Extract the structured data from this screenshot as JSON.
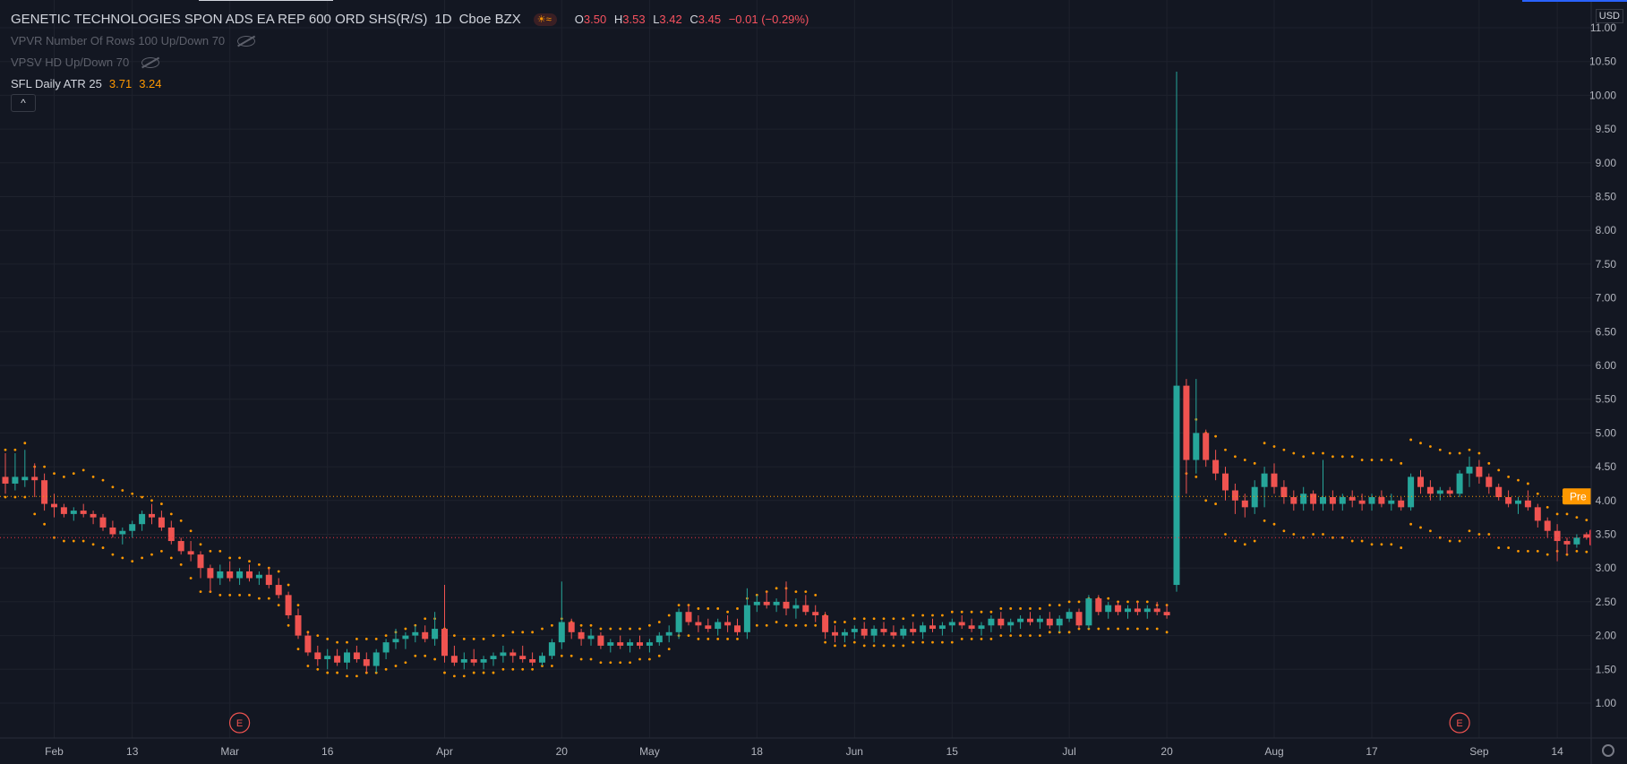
{
  "legend": {
    "symbol": "GENETIC TECHNOLOGIES SPON ADS EA REP 600 ORD SHS(R/S)",
    "interval": "1D",
    "exchange": "Cboe BZX",
    "o_label": "O",
    "o_value": "3.50",
    "h_label": "H",
    "h_value": "3.53",
    "l_label": "L",
    "l_value": "3.42",
    "c_label": "C",
    "c_value": "3.45",
    "change": "−0.01 (−0.29%)",
    "indicators": [
      {
        "name": "VPVR Number Of Rows 100 Up/Down 70",
        "icon": "eye-hidden-icon"
      },
      {
        "name": "VPSV HD Up/Down 70",
        "icon": "eye-hidden-icon"
      }
    ],
    "atr_name": "SFL Daily ATR 25",
    "atr_upper": "3.71",
    "atr_lower": "3.24",
    "collapse_glyph": "^"
  },
  "axis": {
    "currency": "USD"
  },
  "colors": {
    "background": "#131722",
    "up": "#26a69a",
    "down": "#ef5350",
    "atr": "#ff9800",
    "grid": "#1e222d",
    "text": "#b2b5be",
    "pre_badge": "#ff9800",
    "last_badge": "#f23645"
  },
  "chart_data": {
    "type": "candlestick",
    "title": "GENETIC TECHNOLOGIES SPON ADS EA REP 600 ORD SHS(R/S)",
    "ylim": [
      0.7,
      11.2
    ],
    "y_ticks": [
      "1.00",
      "1.50",
      "2.00",
      "2.50",
      "3.00",
      "3.50",
      "4.00",
      "4.50",
      "5.00",
      "5.50",
      "6.00",
      "6.50",
      "7.00",
      "7.50",
      "8.00",
      "8.50",
      "9.00",
      "9.50",
      "10.00",
      "10.50",
      "11.00"
    ],
    "x_ticks": [
      {
        "label": "Feb",
        "index": 5
      },
      {
        "label": "13",
        "index": 13
      },
      {
        "label": "Mar",
        "index": 23
      },
      {
        "label": "16",
        "index": 33
      },
      {
        "label": "Apr",
        "index": 45
      },
      {
        "label": "20",
        "index": 57
      },
      {
        "label": "May",
        "index": 66
      },
      {
        "label": "18",
        "index": 77
      },
      {
        "label": "Jun",
        "index": 87
      },
      {
        "label": "15",
        "index": 97
      },
      {
        "label": "Jul",
        "index": 109
      },
      {
        "label": "20",
        "index": 119
      },
      {
        "label": "Aug",
        "index": 130
      },
      {
        "label": "17",
        "index": 140
      },
      {
        "label": "Sep",
        "index": 151
      },
      {
        "label": "14",
        "index": 159
      }
    ],
    "earnings_markers": [
      {
        "label": "E",
        "index": 24
      },
      {
        "label": "E",
        "index": 149
      }
    ],
    "price_lines": [
      {
        "label": "Pre",
        "value": 4.06,
        "display": "4.06"
      },
      {
        "label": "",
        "value": 3.45,
        "display": "3.45"
      }
    ],
    "candles": [
      [
        4.35,
        4.7,
        4.1,
        4.25
      ],
      [
        4.25,
        4.7,
        4.15,
        4.35
      ],
      [
        4.3,
        4.75,
        4.2,
        4.35
      ],
      [
        4.35,
        4.55,
        4.05,
        4.3
      ],
      [
        4.3,
        4.4,
        3.85,
        3.95
      ],
      [
        3.95,
        4.1,
        3.75,
        3.9
      ],
      [
        3.9,
        3.95,
        3.75,
        3.8
      ],
      [
        3.8,
        3.9,
        3.7,
        3.85
      ],
      [
        3.85,
        3.95,
        3.75,
        3.8
      ],
      [
        3.8,
        3.85,
        3.65,
        3.75
      ],
      [
        3.75,
        3.8,
        3.55,
        3.6
      ],
      [
        3.6,
        3.7,
        3.45,
        3.5
      ],
      [
        3.5,
        3.6,
        3.35,
        3.55
      ],
      [
        3.55,
        3.7,
        3.45,
        3.65
      ],
      [
        3.65,
        3.85,
        3.55,
        3.8
      ],
      [
        3.8,
        3.95,
        3.65,
        3.75
      ],
      [
        3.75,
        3.85,
        3.55,
        3.6
      ],
      [
        3.6,
        3.7,
        3.35,
        3.4
      ],
      [
        3.4,
        3.45,
        3.2,
        3.25
      ],
      [
        3.25,
        3.4,
        3.1,
        3.2
      ],
      [
        3.2,
        3.25,
        2.85,
        3.0
      ],
      [
        3.0,
        3.05,
        2.65,
        2.85
      ],
      [
        2.85,
        3.05,
        2.75,
        2.95
      ],
      [
        2.95,
        3.1,
        2.8,
        2.85
      ],
      [
        2.85,
        3.0,
        2.75,
        2.95
      ],
      [
        2.95,
        3.05,
        2.8,
        2.85
      ],
      [
        2.85,
        2.95,
        2.75,
        2.9
      ],
      [
        2.9,
        3.0,
        2.7,
        2.75
      ],
      [
        2.75,
        2.85,
        2.55,
        2.6
      ],
      [
        2.6,
        2.65,
        2.25,
        2.3
      ],
      [
        2.3,
        2.4,
        1.95,
        2.0
      ],
      [
        2.0,
        2.05,
        1.7,
        1.75
      ],
      [
        1.75,
        1.85,
        1.55,
        1.65
      ],
      [
        1.65,
        1.8,
        1.5,
        1.7
      ],
      [
        1.7,
        1.8,
        1.55,
        1.6
      ],
      [
        1.6,
        1.8,
        1.5,
        1.75
      ],
      [
        1.75,
        1.85,
        1.6,
        1.65
      ],
      [
        1.65,
        1.75,
        1.45,
        1.55
      ],
      [
        1.55,
        1.8,
        1.45,
        1.75
      ],
      [
        1.75,
        1.95,
        1.65,
        1.9
      ],
      [
        1.9,
        2.1,
        1.8,
        1.95
      ],
      [
        1.95,
        2.05,
        1.8,
        2.0
      ],
      [
        2.0,
        2.15,
        1.9,
        2.05
      ],
      [
        2.05,
        2.15,
        1.9,
        1.95
      ],
      [
        1.95,
        2.35,
        1.85,
        2.1
      ],
      [
        2.1,
        2.75,
        1.6,
        1.7
      ],
      [
        1.7,
        1.85,
        1.55,
        1.6
      ],
      [
        1.6,
        1.75,
        1.5,
        1.65
      ],
      [
        1.65,
        1.8,
        1.55,
        1.6
      ],
      [
        1.6,
        1.7,
        1.5,
        1.65
      ],
      [
        1.65,
        1.75,
        1.55,
        1.7
      ],
      [
        1.7,
        1.85,
        1.6,
        1.75
      ],
      [
        1.75,
        1.8,
        1.6,
        1.7
      ],
      [
        1.7,
        1.85,
        1.6,
        1.65
      ],
      [
        1.65,
        1.75,
        1.55,
        1.6
      ],
      [
        1.6,
        1.75,
        1.55,
        1.7
      ],
      [
        1.7,
        1.95,
        1.65,
        1.9
      ],
      [
        1.9,
        2.8,
        1.8,
        2.2
      ],
      [
        2.2,
        2.25,
        1.95,
        2.05
      ],
      [
        2.05,
        2.1,
        1.85,
        1.95
      ],
      [
        1.95,
        2.1,
        1.85,
        2.0
      ],
      [
        2.0,
        2.05,
        1.8,
        1.85
      ],
      [
        1.85,
        1.95,
        1.75,
        1.9
      ],
      [
        1.9,
        2.0,
        1.8,
        1.85
      ],
      [
        1.85,
        1.95,
        1.75,
        1.9
      ],
      [
        1.9,
        2.0,
        1.8,
        1.85
      ],
      [
        1.85,
        1.95,
        1.75,
        1.9
      ],
      [
        1.9,
        2.05,
        1.85,
        2.0
      ],
      [
        2.0,
        2.15,
        1.9,
        2.05
      ],
      [
        2.05,
        2.4,
        1.95,
        2.35
      ],
      [
        2.35,
        2.45,
        2.15,
        2.2
      ],
      [
        2.2,
        2.3,
        2.05,
        2.15
      ],
      [
        2.15,
        2.25,
        2.05,
        2.1
      ],
      [
        2.1,
        2.25,
        2.0,
        2.2
      ],
      [
        2.2,
        2.3,
        2.05,
        2.15
      ],
      [
        2.15,
        2.25,
        2.0,
        2.05
      ],
      [
        2.05,
        2.7,
        1.95,
        2.45
      ],
      [
        2.45,
        2.6,
        2.35,
        2.5
      ],
      [
        2.5,
        2.65,
        2.4,
        2.45
      ],
      [
        2.45,
        2.55,
        2.35,
        2.5
      ],
      [
        2.5,
        2.8,
        2.3,
        2.4
      ],
      [
        2.4,
        2.55,
        2.25,
        2.45
      ],
      [
        2.45,
        2.6,
        2.3,
        2.35
      ],
      [
        2.35,
        2.45,
        2.2,
        2.3
      ],
      [
        2.3,
        2.35,
        1.95,
        2.05
      ],
      [
        2.05,
        2.15,
        1.9,
        2.0
      ],
      [
        2.0,
        2.1,
        1.9,
        2.05
      ],
      [
        2.05,
        2.15,
        1.95,
        2.1
      ],
      [
        2.1,
        2.2,
        1.95,
        2.0
      ],
      [
        2.0,
        2.15,
        1.9,
        2.1
      ],
      [
        2.1,
        2.2,
        2.0,
        2.05
      ],
      [
        2.05,
        2.15,
        1.95,
        2.0
      ],
      [
        2.0,
        2.15,
        1.95,
        2.1
      ],
      [
        2.1,
        2.2,
        2.0,
        2.05
      ],
      [
        2.05,
        2.2,
        1.95,
        2.15
      ],
      [
        2.15,
        2.25,
        2.05,
        2.1
      ],
      [
        2.1,
        2.2,
        2.0,
        2.15
      ],
      [
        2.15,
        2.25,
        2.05,
        2.2
      ],
      [
        2.2,
        2.3,
        2.1,
        2.15
      ],
      [
        2.15,
        2.25,
        2.05,
        2.1
      ],
      [
        2.1,
        2.2,
        2.0,
        2.15
      ],
      [
        2.15,
        2.3,
        2.05,
        2.25
      ],
      [
        2.25,
        2.35,
        2.1,
        2.15
      ],
      [
        2.15,
        2.25,
        2.05,
        2.2
      ],
      [
        2.2,
        2.3,
        2.1,
        2.25
      ],
      [
        2.25,
        2.35,
        2.15,
        2.2
      ],
      [
        2.2,
        2.3,
        2.1,
        2.25
      ],
      [
        2.25,
        2.35,
        2.1,
        2.15
      ],
      [
        2.15,
        2.3,
        2.05,
        2.25
      ],
      [
        2.25,
        2.4,
        2.2,
        2.35
      ],
      [
        2.35,
        2.4,
        2.1,
        2.15
      ],
      [
        2.15,
        2.6,
        2.1,
        2.55
      ],
      [
        2.55,
        2.6,
        2.3,
        2.35
      ],
      [
        2.35,
        2.5,
        2.25,
        2.45
      ],
      [
        2.45,
        2.5,
        2.3,
        2.35
      ],
      [
        2.35,
        2.45,
        2.25,
        2.4
      ],
      [
        2.4,
        2.5,
        2.3,
        2.35
      ],
      [
        2.35,
        2.45,
        2.25,
        2.4
      ],
      [
        2.4,
        2.5,
        2.3,
        2.35
      ],
      [
        2.35,
        2.45,
        2.25,
        2.3
      ],
      [
        2.75,
        10.35,
        2.65,
        5.7
      ],
      [
        5.7,
        5.8,
        4.1,
        4.6
      ],
      [
        4.6,
        5.8,
        4.4,
        5.0
      ],
      [
        5.0,
        5.05,
        4.5,
        4.6
      ],
      [
        4.6,
        4.75,
        4.3,
        4.4
      ],
      [
        4.4,
        4.5,
        4.0,
        4.15
      ],
      [
        4.15,
        4.25,
        3.8,
        4.0
      ],
      [
        4.0,
        4.1,
        3.75,
        3.9
      ],
      [
        3.9,
        4.3,
        3.8,
        4.2
      ],
      [
        4.2,
        4.5,
        3.9,
        4.4
      ],
      [
        4.4,
        4.55,
        4.1,
        4.2
      ],
      [
        4.2,
        4.3,
        3.95,
        4.05
      ],
      [
        4.05,
        4.15,
        3.85,
        3.95
      ],
      [
        3.95,
        4.2,
        3.85,
        4.1
      ],
      [
        4.1,
        4.15,
        3.85,
        3.95
      ],
      [
        3.95,
        4.6,
        3.85,
        4.05
      ],
      [
        4.05,
        4.15,
        3.85,
        3.95
      ],
      [
        3.95,
        4.1,
        3.85,
        4.05
      ],
      [
        4.05,
        4.15,
        3.9,
        4.0
      ],
      [
        4.0,
        4.1,
        3.85,
        3.95
      ],
      [
        3.95,
        4.1,
        3.85,
        4.05
      ],
      [
        4.05,
        4.15,
        3.9,
        3.95
      ],
      [
        3.95,
        4.1,
        3.85,
        4.0
      ],
      [
        4.0,
        4.05,
        3.85,
        3.9
      ],
      [
        3.9,
        4.4,
        3.85,
        4.35
      ],
      [
        4.35,
        4.45,
        4.1,
        4.2
      ],
      [
        4.2,
        4.3,
        4.0,
        4.1
      ],
      [
        4.1,
        4.2,
        4.0,
        4.15
      ],
      [
        4.15,
        4.2,
        4.05,
        4.1
      ],
      [
        4.1,
        4.45,
        4.05,
        4.4
      ],
      [
        4.4,
        4.65,
        4.2,
        4.5
      ],
      [
        4.5,
        4.6,
        4.25,
        4.35
      ],
      [
        4.35,
        4.4,
        4.1,
        4.2
      ],
      [
        4.2,
        4.25,
        4.0,
        4.05
      ],
      [
        4.05,
        4.15,
        3.9,
        3.95
      ],
      [
        3.95,
        4.05,
        3.8,
        4.0
      ],
      [
        4.0,
        4.15,
        3.85,
        3.9
      ],
      [
        3.9,
        3.95,
        3.6,
        3.7
      ],
      [
        3.7,
        3.75,
        3.45,
        3.55
      ],
      [
        3.55,
        3.65,
        3.1,
        3.4
      ],
      [
        3.4,
        3.45,
        3.2,
        3.35
      ],
      [
        3.35,
        3.5,
        3.3,
        3.45
      ],
      [
        3.5,
        3.53,
        3.42,
        3.45
      ]
    ],
    "atr_upper": [
      4.75,
      4.75,
      4.85,
      4.5,
      4.5,
      4.4,
      4.35,
      4.4,
      4.45,
      4.35,
      4.3,
      4.2,
      4.15,
      4.1,
      4.05,
      4.0,
      3.95,
      3.8,
      3.7,
      3.55,
      3.35,
      3.25,
      3.25,
      3.15,
      3.15,
      3.1,
      3.05,
      3.0,
      2.95,
      2.75,
      2.45,
      2.05,
      2.0,
      1.95,
      1.9,
      1.9,
      1.95,
      1.95,
      1.95,
      2.0,
      2.05,
      2.1,
      2.15,
      2.25,
      2.25,
      2.1,
      2.0,
      1.95,
      1.95,
      1.95,
      2.0,
      2.0,
      2.05,
      2.05,
      2.05,
      2.1,
      2.15,
      2.25,
      2.2,
      2.15,
      2.15,
      2.1,
      2.1,
      2.1,
      2.1,
      2.1,
      2.15,
      2.2,
      2.3,
      2.45,
      2.45,
      2.4,
      2.4,
      2.4,
      2.35,
      2.4,
      2.55,
      2.6,
      2.65,
      2.7,
      2.7,
      2.65,
      2.65,
      2.6,
      2.3,
      2.2,
      2.2,
      2.25,
      2.25,
      2.25,
      2.25,
      2.25,
      2.25,
      2.3,
      2.3,
      2.3,
      2.3,
      2.35,
      2.35,
      2.35,
      2.35,
      2.35,
      2.4,
      2.4,
      2.4,
      2.4,
      2.4,
      2.45,
      2.45,
      2.5,
      2.5,
      2.55,
      2.55,
      2.55,
      2.5,
      2.5,
      2.5,
      2.5,
      2.45,
      2.45,
      5.3,
      5.25,
      5.2,
      5.0,
      4.95,
      4.75,
      4.65,
      4.6,
      4.55,
      4.85,
      4.8,
      4.75,
      4.7,
      4.65,
      4.7,
      4.7,
      4.65,
      4.65,
      4.65,
      4.6,
      4.6,
      4.6,
      4.6,
      4.55,
      4.9,
      4.85,
      4.8,
      4.75,
      4.7,
      4.7,
      4.75,
      4.7,
      4.55,
      4.45,
      4.35,
      4.3,
      4.25,
      4.1,
      3.9,
      3.8,
      3.8,
      3.75,
      3.71
    ],
    "atr_lower": [
      4.05,
      4.05,
      4.05,
      3.8,
      3.65,
      3.45,
      3.4,
      3.4,
      3.4,
      3.35,
      3.3,
      3.2,
      3.15,
      3.1,
      3.15,
      3.2,
      3.25,
      3.15,
      3.05,
      2.85,
      2.65,
      2.65,
      2.6,
      2.6,
      2.6,
      2.6,
      2.55,
      2.55,
      2.45,
      2.15,
      1.8,
      1.55,
      1.5,
      1.45,
      1.45,
      1.4,
      1.4,
      1.45,
      1.45,
      1.5,
      1.55,
      1.6,
      1.7,
      1.7,
      1.65,
      1.45,
      1.4,
      1.4,
      1.45,
      1.45,
      1.45,
      1.5,
      1.5,
      1.5,
      1.5,
      1.55,
      1.55,
      1.7,
      1.7,
      1.65,
      1.65,
      1.6,
      1.6,
      1.6,
      1.6,
      1.65,
      1.65,
      1.7,
      1.8,
      2.0,
      2.0,
      1.95,
      1.95,
      1.95,
      1.95,
      1.95,
      2.1,
      2.15,
      2.15,
      2.2,
      2.15,
      2.15,
      2.15,
      2.15,
      1.9,
      1.85,
      1.85,
      1.9,
      1.85,
      1.85,
      1.85,
      1.85,
      1.85,
      1.9,
      1.9,
      1.9,
      1.9,
      1.9,
      1.95,
      1.95,
      1.95,
      1.95,
      2.0,
      2.0,
      2.0,
      2.0,
      2.0,
      2.05,
      2.05,
      2.05,
      2.1,
      2.1,
      2.1,
      2.1,
      2.1,
      2.1,
      2.1,
      2.1,
      2.1,
      2.05,
      4.45,
      4.4,
      4.35,
      4.0,
      3.95,
      3.5,
      3.4,
      3.35,
      3.4,
      3.7,
      3.65,
      3.55,
      3.5,
      3.45,
      3.5,
      3.5,
      3.45,
      3.45,
      3.4,
      3.4,
      3.35,
      3.35,
      3.35,
      3.3,
      3.65,
      3.6,
      3.55,
      3.45,
      3.4,
      3.4,
      3.55,
      3.5,
      3.5,
      3.3,
      3.3,
      3.25,
      3.25,
      3.25,
      3.2,
      3.25,
      3.2,
      3.25,
      3.24
    ]
  }
}
